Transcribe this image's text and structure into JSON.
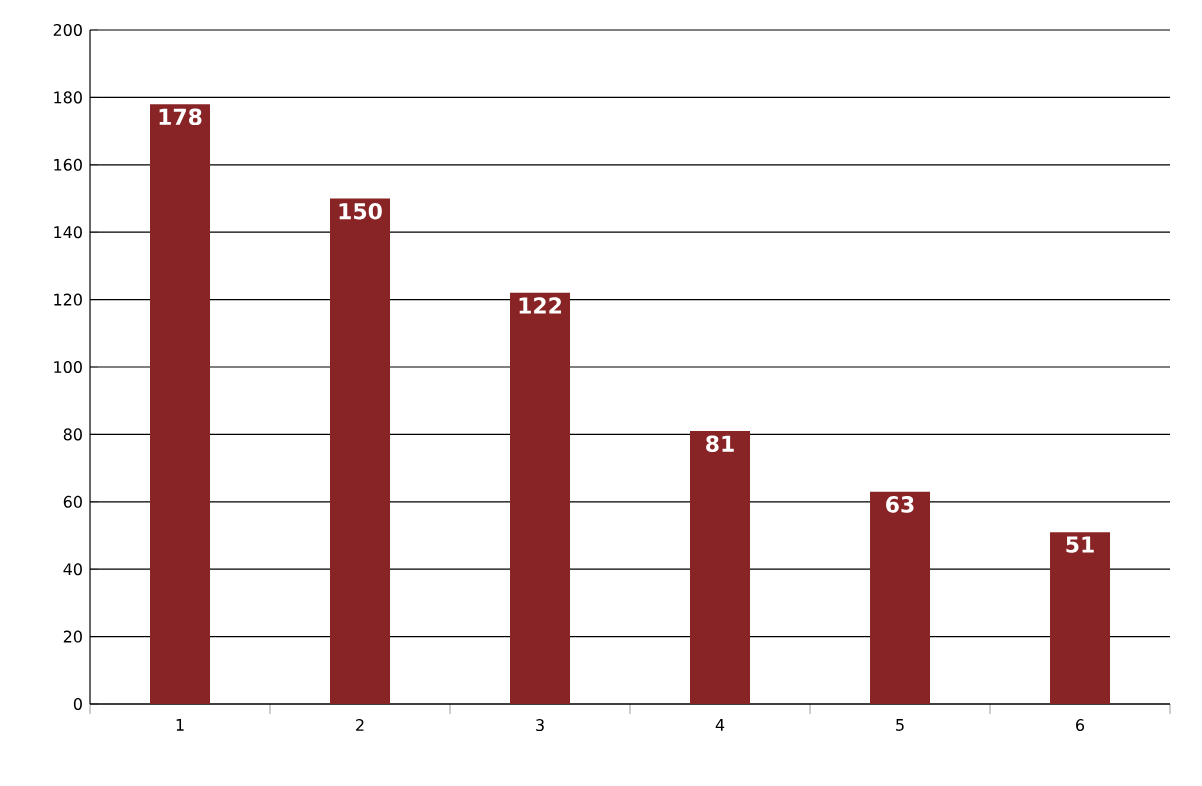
{
  "chart_data": {
    "type": "bar",
    "categories": [
      "1",
      "2",
      "3",
      "4",
      "5",
      "6"
    ],
    "values": [
      178,
      150,
      122,
      81,
      63,
      51
    ],
    "color": "#882426",
    "ylim": [
      0,
      200
    ],
    "yticks": [
      0,
      20,
      40,
      60,
      80,
      100,
      120,
      140,
      160,
      180,
      200
    ],
    "grid": "y",
    "data_labels": true
  }
}
